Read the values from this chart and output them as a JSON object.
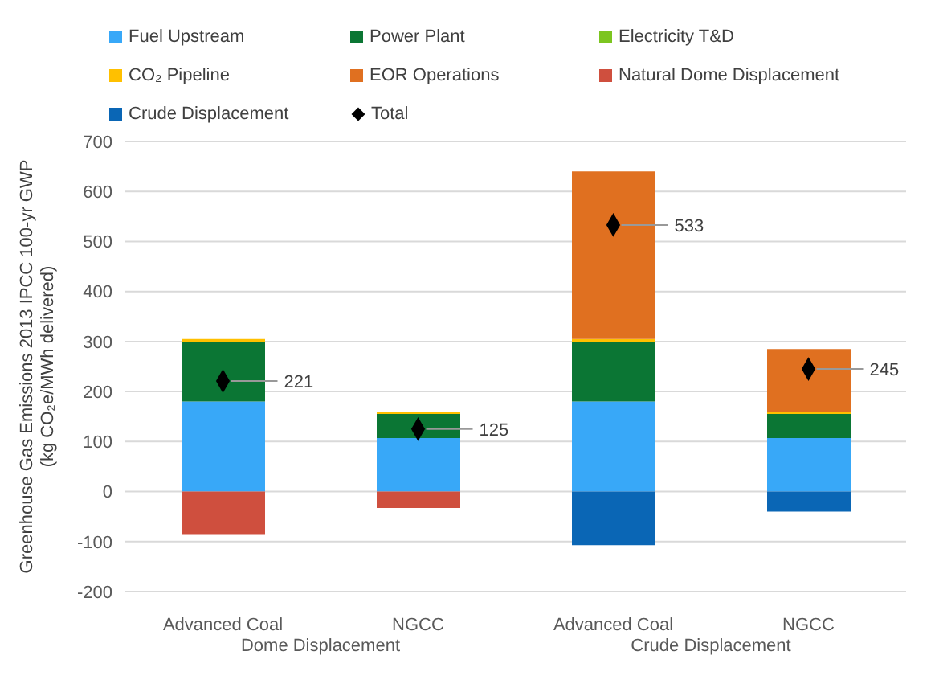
{
  "chart_data": {
    "type": "bar",
    "stacked": true,
    "ylabel": "Greenhouse Gas Emissions 2013 IPCC 100-yr GWP\n(kg CO₂e/MWh delivered)",
    "categories": [
      "Advanced Coal",
      "NGCC",
      "Advanced Coal",
      "NGCC"
    ],
    "annotations": [
      "Dome Displacement",
      "Crude Displacement"
    ],
    "series": [
      {
        "name": "Fuel Upstream",
        "color": "#38a8f8",
        "values": [
          180,
          107,
          180,
          107
        ]
      },
      {
        "name": "Power Plant",
        "color": "#0b7634",
        "values": [
          120,
          48,
          120,
          48
        ]
      },
      {
        "name": "Electricity T&D",
        "color": "#7cc520",
        "values": [
          null,
          null,
          null,
          null
        ]
      },
      {
        "name": "CO₂ Pipeline",
        "color": "#ffc000",
        "values": [
          5,
          4,
          5,
          4
        ]
      },
      {
        "name": "EOR Operations",
        "color": "#e07020",
        "values": [
          null,
          null,
          335,
          126
        ]
      },
      {
        "name": "Natural Dome Displacement",
        "color": "#cf4f3e",
        "values": [
          -85,
          -33,
          null,
          null
        ]
      },
      {
        "name": "Crude Displacement",
        "color": "#0a66b5",
        "values": [
          null,
          null,
          -107,
          -40
        ]
      },
      {
        "name": "Total",
        "type": "scatter",
        "marker": "diamond",
        "color": "#000000",
        "values": [
          221,
          125,
          533,
          245
        ],
        "value_labels": [
          "221",
          "125",
          "533",
          "245"
        ]
      }
    ],
    "ylim": [
      -200,
      700
    ],
    "yticks": [
      -200,
      -100,
      0,
      100,
      200,
      300,
      400,
      500,
      600,
      700
    ],
    "grid": "y",
    "legend": "top"
  }
}
